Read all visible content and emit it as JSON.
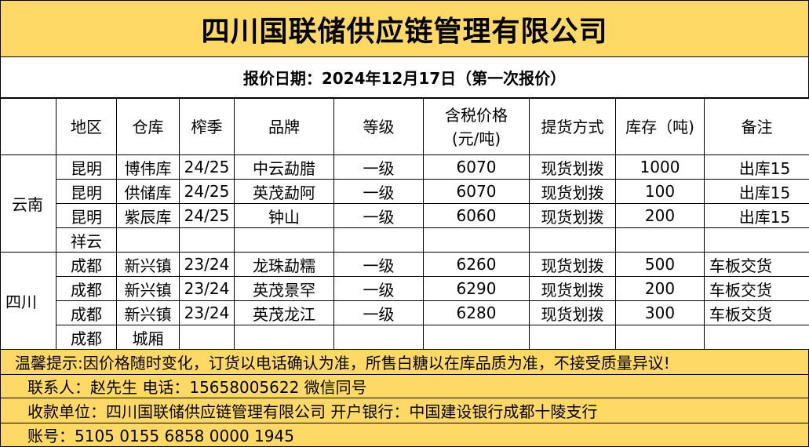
{
  "title": "四川国联储供应链管理有限公司",
  "date_line": "报价日期：2024年12月17日（第一次报价）",
  "headers": [
    "地区",
    "仓库",
    "榨季",
    "品牌",
    "等级",
    "含税价格\n(元/吨)",
    "提货方式",
    "库存（吨)",
    "备注"
  ],
  "header_price_1": "含税价格",
  "header_price_2": "(元/吨)",
  "groups": [
    {
      "province": "云南",
      "rows": [
        [
          "昆明",
          "博伟库",
          "24/25",
          "中云勐腊",
          "一级",
          "6070",
          "现货划拨",
          "1000",
          "出库15"
        ],
        [
          "昆明",
          "供储库",
          "24/25",
          "英茂勐阿",
          "一级",
          "6070",
          "现货划拨",
          "100",
          "出库15"
        ],
        [
          "昆明",
          "紫辰库",
          "24/25",
          "钟山",
          "一级",
          "6060",
          "现货划拨",
          "200",
          "出库15"
        ],
        [
          "祥云",
          "",
          "",
          "",
          "",
          "",
          "",
          "",
          ""
        ]
      ]
    },
    {
      "province": "四川",
      "rows": [
        [
          "成都",
          "新兴镇",
          "23/24",
          "龙珠勐糯",
          "一级",
          "6260",
          "现货划拨",
          "500",
          "车板交货"
        ],
        [
          "成都",
          "新兴镇",
          "23/24",
          "英茂景罕",
          "一级",
          "6290",
          "现货划拨",
          "200",
          "车板交货"
        ],
        [
          "成都",
          "新兴镇",
          "23/24",
          "英茂龙江",
          "一级",
          "6280",
          "现货划拨",
          "300",
          "车板交货"
        ],
        [
          "成都",
          "城厢",
          "",
          "",
          "",
          "",
          "",
          "",
          ""
        ]
      ]
    }
  ],
  "footer": {
    "notice": "温馨提示:因价格随时变化，订货以电话确认为准，所售白糖以在库品质为准，不接受质量异议!",
    "contact": "联系人：赵先生  电话：15658005622  微信同号",
    "payee": "收款单位：四川国联储供应链管理有限公司  开户银行：中国建设银行成都十陵支行",
    "account": "账号：5105 0155 6858 0000 1945"
  },
  "colors": {
    "highlight": "#ffd966"
  }
}
